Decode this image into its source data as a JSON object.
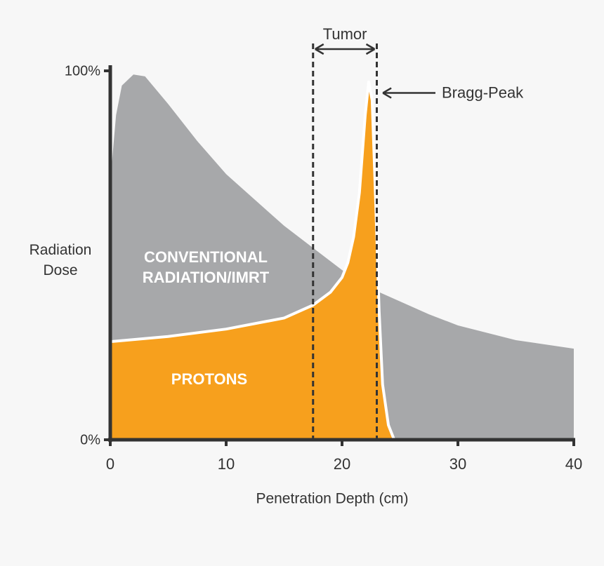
{
  "chart_data": {
    "type": "area",
    "x_label": "Penetration Depth (cm)",
    "y_label": "Radiation Dose",
    "xlim": [
      0,
      40
    ],
    "ylim": [
      0,
      100
    ],
    "xticks": [
      0,
      10,
      20,
      30,
      40
    ],
    "yticks": [
      {
        "value": 0,
        "label": "0%"
      },
      {
        "value": 100,
        "label": "100%"
      }
    ],
    "series": [
      {
        "name": "CONVENTIONAL RADIATION/IMRT",
        "color": "#a7a8aa",
        "x": [
          0,
          0.5,
          1,
          2,
          3,
          5,
          7.5,
          10,
          12.5,
          15,
          17.5,
          20,
          22.5,
          25,
          27.5,
          30,
          35,
          40
        ],
        "values": [
          70,
          88,
          96,
          99,
          98.5,
          91,
          81,
          72,
          65,
          58,
          52,
          46,
          41,
          37.5,
          34,
          31,
          27,
          24.7
        ]
      },
      {
        "name": "PROTONS",
        "color": "#f7a01d",
        "x": [
          0,
          5,
          10,
          15,
          17.5,
          19,
          20,
          20.5,
          21,
          21.5,
          22,
          22.3,
          22.6,
          22.9,
          23.2,
          23.5,
          24,
          24.5
        ],
        "values": [
          26.6,
          28,
          30,
          33,
          36.5,
          40,
          44,
          48,
          55,
          67,
          88,
          97,
          92,
          65,
          35,
          15,
          4,
          0
        ]
      }
    ],
    "annotations": [
      {
        "text": "Tumor",
        "x": [
          17.5,
          23
        ]
      },
      {
        "text": "Bragg-Peak",
        "x": 23.4,
        "y": 94
      }
    ]
  }
}
